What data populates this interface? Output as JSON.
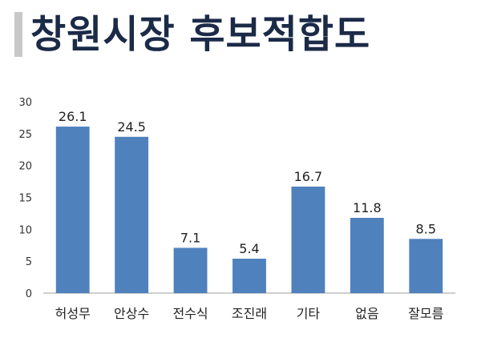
{
  "title": "창원시장 후보적합도",
  "colors": {
    "bar": "#4f81bd",
    "title": "#1b2a47",
    "accent_bar": "#c8c8c8",
    "axis": "#bfbfbf"
  },
  "chart_data": {
    "type": "bar",
    "categories": [
      "허성무",
      "안상수",
      "전수식",
      "조진래",
      "기타",
      "없음",
      "잘모름"
    ],
    "values": [
      26.1,
      24.5,
      7.1,
      5.4,
      16.7,
      11.8,
      8.5
    ],
    "value_labels": [
      "26.1",
      "24.5",
      "7.1",
      "5.4",
      "16.7",
      "11.8",
      "8.5"
    ],
    "ylim": [
      0,
      30
    ],
    "yticks": [
      0,
      5,
      10,
      15,
      20,
      25,
      30
    ],
    "grid": false,
    "legend": "none"
  }
}
